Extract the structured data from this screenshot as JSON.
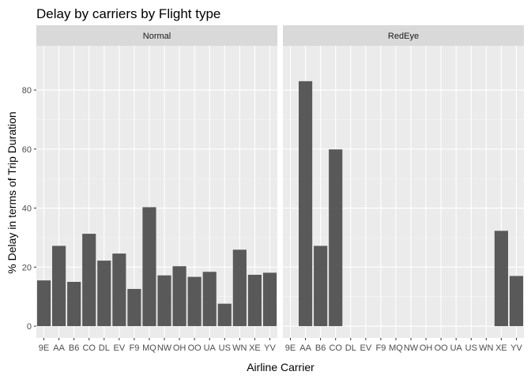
{
  "chart_data": {
    "type": "bar",
    "title": "Delay by carriers by Flight type",
    "xlabel": "Airline Carrier",
    "ylabel": "% Delay in terms of Trip Duration",
    "ylim": [
      -4,
      95
    ],
    "yticks": [
      0,
      20,
      40,
      60,
      80
    ],
    "grid": true,
    "legend": "none",
    "categories": [
      "9E",
      "AA",
      "B6",
      "CO",
      "DL",
      "EV",
      "F9",
      "MQ",
      "NW",
      "OH",
      "OO",
      "UA",
      "US",
      "WN",
      "XE",
      "YV"
    ],
    "facets": [
      {
        "label": "Normal",
        "values": [
          15.5,
          27.2,
          15.0,
          31.3,
          22.2,
          24.6,
          12.6,
          40.3,
          17.2,
          20.3,
          16.7,
          18.4,
          7.6,
          25.9,
          17.4,
          18.1
        ]
      },
      {
        "label": "RedEye",
        "values": [
          null,
          83.0,
          27.2,
          59.9,
          null,
          null,
          null,
          null,
          null,
          null,
          null,
          null,
          null,
          null,
          32.3,
          17.0
        ]
      }
    ]
  },
  "colors": {
    "panel_bg": "#ebebeb",
    "grid_major": "#ffffff",
    "bar_fill": "#595959",
    "strip_bg": "#d9d9d9"
  }
}
